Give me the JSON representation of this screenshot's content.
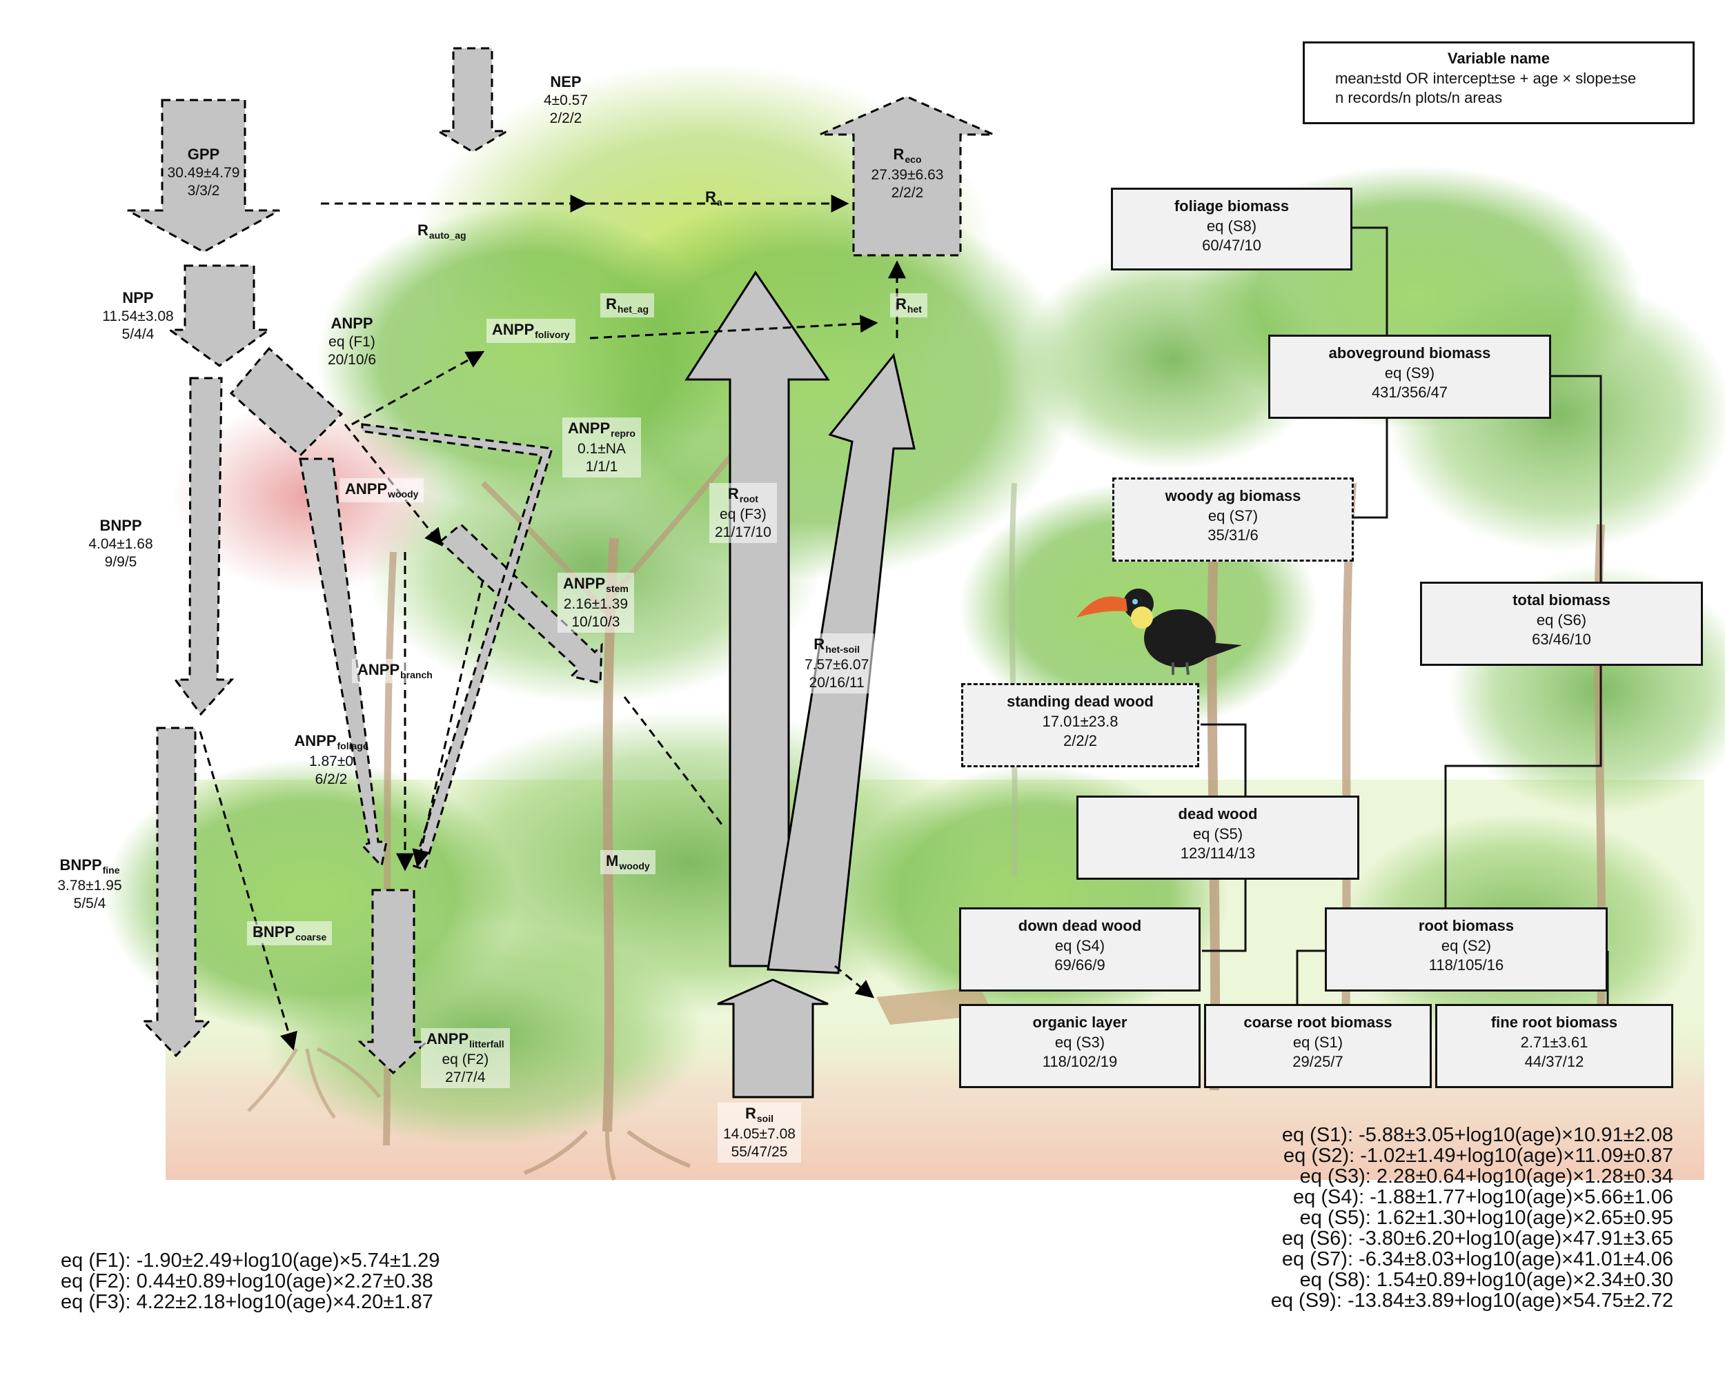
{
  "legend": {
    "title": "Variable name",
    "line1": "mean±std OR intercept±se + age × slope±se",
    "line2": "n records/n plots/n areas"
  },
  "fluxes": {
    "gpp": {
      "name": "GPP",
      "value": "30.49±4.79",
      "n": "3/3/2"
    },
    "nep": {
      "name": "NEP",
      "value": "4±0.57",
      "n": "2/2/2"
    },
    "reco": {
      "name": "R",
      "sub": "eco",
      "value": "27.39±6.63",
      "n": "2/2/2"
    },
    "npp": {
      "name": "NPP",
      "value": "11.54±3.08",
      "n": "5/4/4"
    },
    "anpp": {
      "name": "ANPP",
      "value": "eq (F1)",
      "n": "20/10/6"
    },
    "bnpp": {
      "name": "BNPP",
      "value": "4.04±1.68",
      "n": "9/9/5"
    },
    "bnpp_fine": {
      "name": "BNPP",
      "sub": "fine",
      "value": "3.78±1.95",
      "n": "5/5/4"
    },
    "bnpp_coarse": {
      "name": "BNPP",
      "sub": "coarse"
    },
    "anpp_folivory": {
      "name": "ANPP",
      "sub": "folivory"
    },
    "anpp_repro": {
      "name": "ANPP",
      "sub": "repro",
      "value": "0.1±NA",
      "n": "1/1/1"
    },
    "anpp_woody": {
      "name": "ANPP",
      "sub": "woody"
    },
    "anpp_stem": {
      "name": "ANPP",
      "sub": "stem",
      "value": "2.16±1.39",
      "n": "10/10/3"
    },
    "anpp_branch": {
      "name": "ANPP",
      "sub": "branch"
    },
    "anpp_foliage": {
      "name": "ANPP",
      "sub": "foliage",
      "value": "1.87±0",
      "n": "6/2/2"
    },
    "anpp_litterfall": {
      "name": "ANPP",
      "sub": "litterfall",
      "value": "eq (F2)",
      "n": "27/7/4"
    },
    "m_woody": {
      "name": "M",
      "sub": "woody"
    },
    "r_root": {
      "name": "R",
      "sub": "root",
      "value": "eq (F3)",
      "n": "21/17/10"
    },
    "r_het_soil": {
      "name": "R",
      "sub": "het-soil",
      "value": "7.57±6.07",
      "n": "20/16/11"
    },
    "r_soil": {
      "name": "R",
      "sub": "soil",
      "value": "14.05±7.08",
      "n": "55/47/25"
    },
    "r_het": {
      "name": "R",
      "sub": "het"
    },
    "r_het_ag": {
      "name": "R",
      "sub": "het_ag"
    },
    "r_a": {
      "name": "R",
      "sub": "a"
    },
    "r_auto_ag": {
      "name": "R",
      "sub": "auto_ag"
    }
  },
  "stocks": {
    "foliage": {
      "name": "foliage biomass",
      "value": "eq (S8)",
      "n": "60/47/10"
    },
    "aboveground": {
      "name": "aboveground biomass",
      "value": "eq (S9)",
      "n": "431/356/47"
    },
    "woody_ag": {
      "name": "woody ag biomass",
      "value": "eq (S7)",
      "n": "35/31/6"
    },
    "total": {
      "name": "total biomass",
      "value": "eq (S6)",
      "n": "63/46/10"
    },
    "standing_dead": {
      "name": "standing dead wood",
      "value": "17.01±23.8",
      "n": "2/2/2"
    },
    "dead_wood": {
      "name": "dead wood",
      "value": "eq (S5)",
      "n": "123/114/13"
    },
    "down_dead": {
      "name": "down dead wood",
      "value": "eq (S4)",
      "n": "69/66/9"
    },
    "root": {
      "name": "root biomass",
      "value": "eq (S2)",
      "n": "118/105/16"
    },
    "organic": {
      "name": "organic layer",
      "value": "eq (S3)",
      "n": "118/102/19"
    },
    "coarse_root": {
      "name": "coarse root biomass",
      "value": "eq (S1)",
      "n": "29/25/7"
    },
    "fine_root": {
      "name": "fine root biomass",
      "value": "2.71±3.61",
      "n": "44/37/12"
    }
  },
  "equations_flux": [
    "eq (F1): -1.90±2.49+log10(age)×5.74±1.29",
    "eq (F2): 0.44±0.89+log10(age)×2.27±0.38",
    "eq (F3): 4.22±2.18+log10(age)×4.20±1.87"
  ],
  "equations_stock": [
    "eq (S1): -5.88±3.05+log10(age)×10.91±2.08",
    "eq (S2): -1.02±1.49+log10(age)×11.09±0.87",
    "eq (S3): 2.28±0.64+log10(age)×1.28±0.34",
    "eq (S4): -1.88±1.77+log10(age)×5.66±1.06",
    "eq (S5): 1.62±1.30+log10(age)×2.65±0.95",
    "eq (S6): -3.80±6.20+log10(age)×47.91±3.65",
    "eq (S7): -6.34±8.03+log10(age)×41.01±4.06",
    "eq (S8): 1.54±0.89+log10(age)×2.34±0.30",
    "eq (S9): -13.84±3.89+log10(age)×54.75±2.72"
  ],
  "colors": {
    "arrow_fill": "#c4c4c4",
    "box_fill": "#f1f1f1",
    "forest_green": "#7fc25a",
    "soil": "#f3c6b4"
  }
}
